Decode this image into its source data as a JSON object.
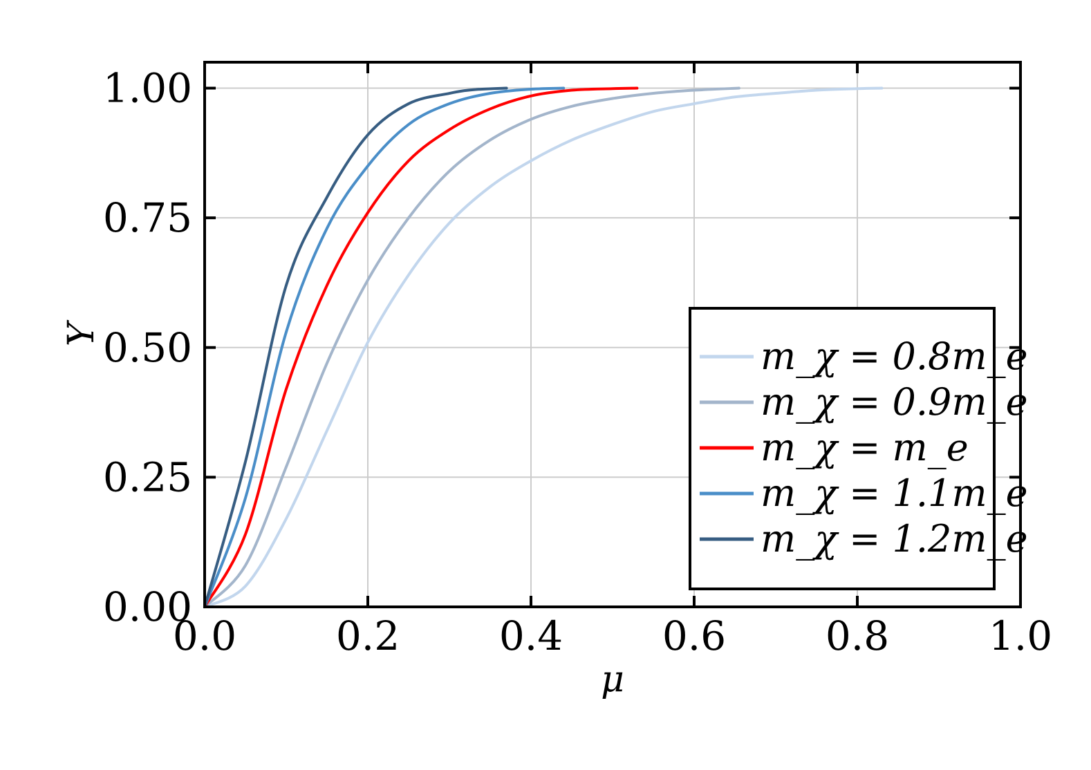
{
  "chart_data": {
    "type": "line",
    "xlabel": "μ",
    "ylabel": "Y",
    "xlim": [
      0.0,
      1.0
    ],
    "ylim": [
      0.0,
      1.05
    ],
    "xticks": [
      0.0,
      0.2,
      0.4,
      0.6,
      0.8,
      1.0
    ],
    "xtick_labels": [
      "0.0",
      "0.2",
      "0.4",
      "0.6",
      "0.8",
      "1.0"
    ],
    "yticks": [
      0.0,
      0.25,
      0.5,
      0.75,
      1.0
    ],
    "ytick_labels": [
      "0.00",
      "0.25",
      "0.50",
      "0.75",
      "1.00"
    ],
    "grid": true,
    "legend_position": "lower-right",
    "series": [
      {
        "name": "m_χ = 0.8m_e",
        "color": "#c2d6ed",
        "x": [
          0,
          0.05,
          0.1,
          0.15,
          0.2,
          0.25,
          0.3,
          0.35,
          0.4,
          0.45,
          0.5,
          0.55,
          0.6,
          0.65,
          0.7,
          0.75,
          0.8,
          0.83
        ],
        "y": [
          0,
          0.04,
          0.17,
          0.34,
          0.51,
          0.64,
          0.74,
          0.81,
          0.86,
          0.9,
          0.93,
          0.955,
          0.97,
          0.983,
          0.99,
          0.996,
          0.999,
          1.0
        ]
      },
      {
        "name": "m_χ = 0.9m_e",
        "color": "#a3b5cb",
        "x": [
          0,
          0.05,
          0.1,
          0.15,
          0.2,
          0.25,
          0.3,
          0.35,
          0.4,
          0.45,
          0.5,
          0.55,
          0.6,
          0.655
        ],
        "y": [
          0,
          0.08,
          0.27,
          0.47,
          0.63,
          0.75,
          0.84,
          0.9,
          0.94,
          0.965,
          0.98,
          0.99,
          0.996,
          1.0
        ]
      },
      {
        "name": "m_χ = m_e",
        "color": "#ff0000",
        "x": [
          0,
          0.05,
          0.1,
          0.15,
          0.2,
          0.25,
          0.3,
          0.35,
          0.4,
          0.45,
          0.5,
          0.53
        ],
        "y": [
          0,
          0.14,
          0.42,
          0.62,
          0.76,
          0.86,
          0.92,
          0.96,
          0.985,
          0.996,
          0.999,
          1.0
        ]
      },
      {
        "name": "m_χ = 1.1m_e",
        "color": "#4a8ec8",
        "x": [
          0,
          0.05,
          0.1,
          0.15,
          0.2,
          0.25,
          0.3,
          0.35,
          0.4,
          0.44
        ],
        "y": [
          0,
          0.21,
          0.53,
          0.73,
          0.85,
          0.93,
          0.97,
          0.99,
          0.998,
          1.0
        ]
      },
      {
        "name": "m_χ = 1.2m_e",
        "color": "#375d82",
        "x": [
          0,
          0.05,
          0.1,
          0.15,
          0.2,
          0.25,
          0.3,
          0.33,
          0.37
        ],
        "y": [
          0,
          0.28,
          0.62,
          0.79,
          0.91,
          0.97,
          0.99,
          0.997,
          1.0
        ]
      }
    ]
  }
}
